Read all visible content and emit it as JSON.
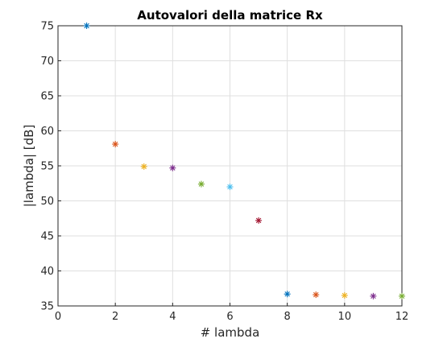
{
  "chart_data": {
    "type": "scatter",
    "title": "Autovalori della matrice Rx",
    "xlabel": "# lambda",
    "ylabel": "|lambda| [dB]",
    "xlim": [
      0,
      12
    ],
    "ylim": [
      35,
      75
    ],
    "xticks": [
      "0",
      "2",
      "4",
      "6",
      "8",
      "10",
      "12"
    ],
    "yticks": [
      "35",
      "40",
      "45",
      "50",
      "55",
      "60",
      "65",
      "70",
      "75"
    ],
    "grid": true,
    "marker": "asterisk",
    "points": [
      {
        "x": 1,
        "y": 75.0,
        "color": "#0072BD"
      },
      {
        "x": 2,
        "y": 58.1,
        "color": "#D95319"
      },
      {
        "x": 3,
        "y": 54.9,
        "color": "#EDB120"
      },
      {
        "x": 4,
        "y": 54.7,
        "color": "#7E2F8E"
      },
      {
        "x": 5,
        "y": 52.4,
        "color": "#77AC30"
      },
      {
        "x": 6,
        "y": 52.0,
        "color": "#4DBEEE"
      },
      {
        "x": 7,
        "y": 47.2,
        "color": "#A2142F"
      },
      {
        "x": 8,
        "y": 36.7,
        "color": "#0072BD"
      },
      {
        "x": 9,
        "y": 36.6,
        "color": "#D95319"
      },
      {
        "x": 10,
        "y": 36.5,
        "color": "#EDB120"
      },
      {
        "x": 11,
        "y": 36.4,
        "color": "#7E2F8E"
      },
      {
        "x": 12,
        "y": 36.4,
        "color": "#77AC30"
      }
    ]
  }
}
